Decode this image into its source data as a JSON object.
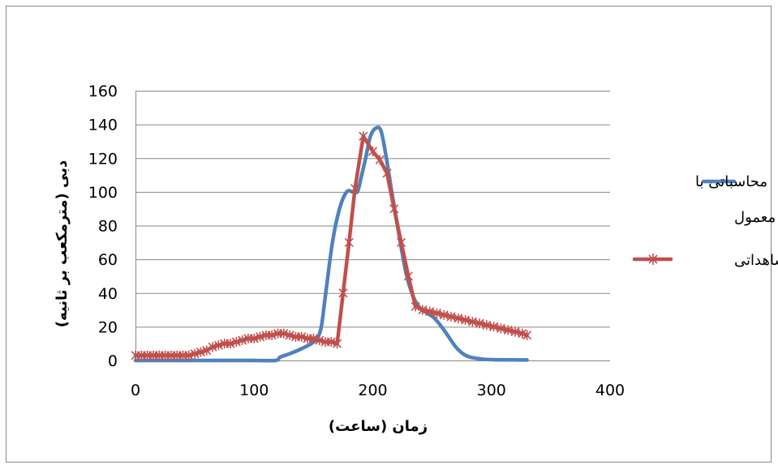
{
  "chart_data": {
    "type": "line",
    "title": "",
    "xlabel": "زمان (ساعت)",
    "ylabel": "دبی (مترمکعب بر ثانیه)",
    "xlim": [
      0,
      400
    ],
    "ylim": [
      0,
      160
    ],
    "x_ticks": [
      0,
      100,
      200,
      300,
      400
    ],
    "y_ticks": [
      0,
      20,
      40,
      60,
      80,
      100,
      120,
      140,
      160
    ],
    "grid": "horizontal",
    "legend_position": "right",
    "series": [
      {
        "name": "محاسباتی با روش معمول",
        "color": "#4F81BD",
        "marker": "none",
        "smooth": true,
        "x": [
          0,
          50,
          100,
          118,
          122,
          130,
          140,
          150,
          156,
          160,
          166,
          172,
          178,
          183,
          187,
          190,
          194,
          198,
          203,
          207,
          211,
          216,
          222,
          228,
          234,
          240,
          246,
          252,
          258,
          264,
          270,
          276,
          282,
          290,
          300,
          330
        ],
        "y": [
          0,
          0,
          0,
          0,
          2,
          4,
          7,
          11,
          18,
          38,
          70,
          90,
          100,
          100,
          100,
          108,
          120,
          133,
          138,
          136,
          122,
          100,
          75,
          52,
          38,
          31,
          28,
          25,
          20,
          14,
          8,
          4,
          2,
          1,
          0.5,
          0.3
        ]
      },
      {
        "name": "مشاهداتی",
        "color": "#C0504D",
        "marker": "x",
        "smooth": false,
        "x": [
          0,
          5,
          10,
          15,
          20,
          25,
          30,
          35,
          40,
          45,
          50,
          55,
          60,
          65,
          70,
          75,
          80,
          85,
          90,
          95,
          100,
          105,
          110,
          115,
          120,
          125,
          130,
          135,
          140,
          145,
          150,
          155,
          160,
          165,
          170,
          175,
          180,
          185,
          192,
          200,
          206,
          212,
          218,
          224,
          230,
          236,
          242,
          248,
          254,
          260,
          266,
          272,
          278,
          284,
          290,
          296,
          302,
          308,
          314,
          320,
          326,
          330
        ],
        "y": [
          3,
          3,
          3,
          3,
          3,
          3,
          3,
          3,
          3,
          3,
          4,
          5,
          6,
          8,
          9,
          10,
          10,
          11,
          12,
          13,
          13,
          14,
          15,
          15,
          16,
          16,
          15,
          14,
          14,
          13,
          13,
          12,
          11,
          11,
          10,
          40,
          70,
          102,
          133,
          124,
          119,
          111,
          90,
          70,
          50,
          32,
          30,
          29,
          28,
          27,
          26,
          25,
          24,
          23,
          22,
          21,
          20,
          19,
          18,
          17,
          16,
          15
        ]
      }
    ]
  }
}
